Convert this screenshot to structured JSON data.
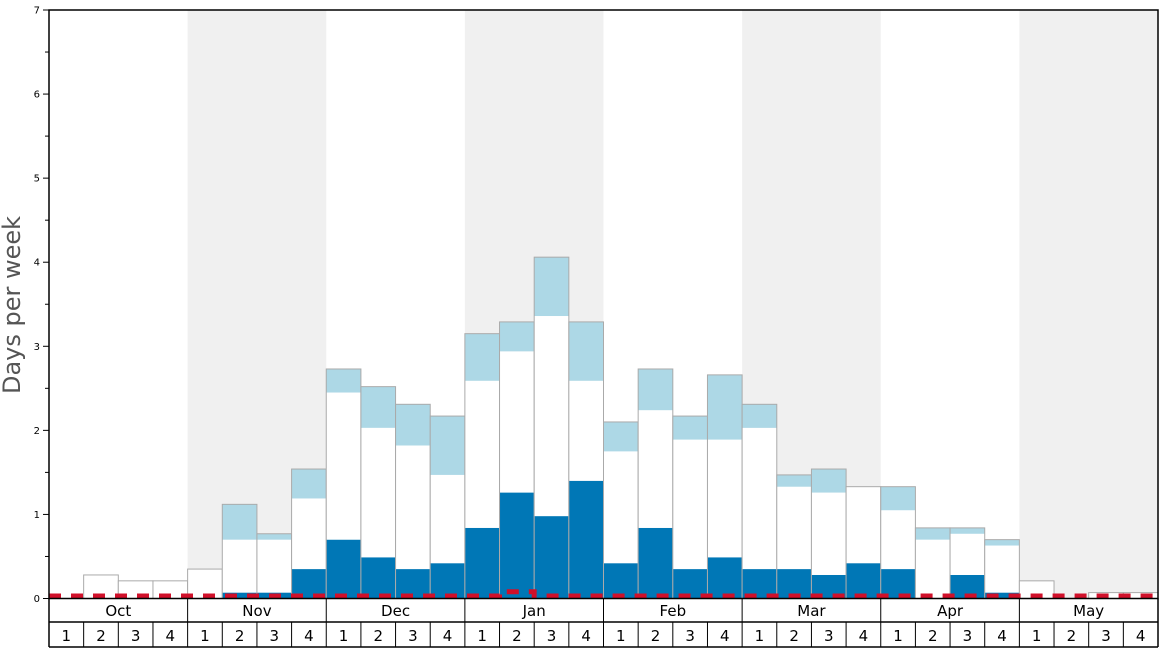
{
  "chart_data": {
    "type": "bar",
    "ylabel": "Days per week",
    "ylim": [
      0,
      7
    ],
    "y_ticks": [
      0,
      1,
      2,
      3,
      4,
      5,
      6,
      7
    ],
    "months": [
      "Oct",
      "Nov",
      "Dec",
      "Jan",
      "Feb",
      "Mar",
      "Apr",
      "May"
    ],
    "weeks": [
      "1",
      "2",
      "3",
      "4"
    ],
    "shaded_months": [
      "Nov",
      "Jan",
      "Mar",
      "May"
    ],
    "stacked": true,
    "colors": {
      "dark": "#0077b6",
      "white": "#ffffff",
      "light": "#add8e6",
      "line": "#d0102a",
      "shade": "#f0f0f0",
      "bar_border": "#aaaaaa"
    },
    "series": [
      {
        "values": [
          0,
          0,
          0,
          0,
          0,
          0.07,
          0.07,
          0.35,
          0.7,
          0.49,
          0.35,
          0.42,
          0.84,
          1.26,
          0.98,
          1.4,
          0.42,
          0.84,
          0.35,
          0.49,
          0.35,
          0.35,
          0.28,
          0.42,
          0.35,
          0,
          0.28,
          0.07,
          0,
          0,
          0,
          0
        ]
      },
      {
        "values": [
          0,
          0.28,
          0.21,
          0.21,
          0.35,
          0.63,
          0.63,
          0.84,
          1.75,
          1.54,
          1.47,
          1.05,
          1.75,
          1.68,
          2.38,
          1.19,
          1.33,
          1.4,
          1.54,
          1.4,
          1.68,
          0.98,
          0.98,
          0.91,
          0.7,
          0.7,
          0.49,
          0.56,
          0.21,
          0,
          0.07,
          0.07
        ]
      },
      {
        "values": [
          0,
          0,
          0,
          0,
          0,
          0.42,
          0.07,
          0.35,
          0.28,
          0.49,
          0.49,
          0.7,
          0.56,
          0.35,
          0.7,
          0.7,
          0.35,
          0.49,
          0.28,
          0.77,
          0.28,
          0.14,
          0.28,
          0,
          0.28,
          0.14,
          0.07,
          0.07,
          0,
          0,
          0,
          0
        ]
      }
    ],
    "line_values": [
      0.03,
      0.03,
      0.03,
      0.03,
      0.03,
      0.03,
      0.03,
      0.03,
      0.03,
      0.03,
      0.03,
      0.03,
      0.03,
      0.08,
      0.03,
      0.03,
      0.03,
      0.03,
      0.03,
      0.03,
      0.03,
      0.03,
      0.03,
      0.03,
      0.03,
      0.03,
      0.03,
      0.03,
      0.03,
      0.03,
      0.03,
      0.03
    ]
  }
}
